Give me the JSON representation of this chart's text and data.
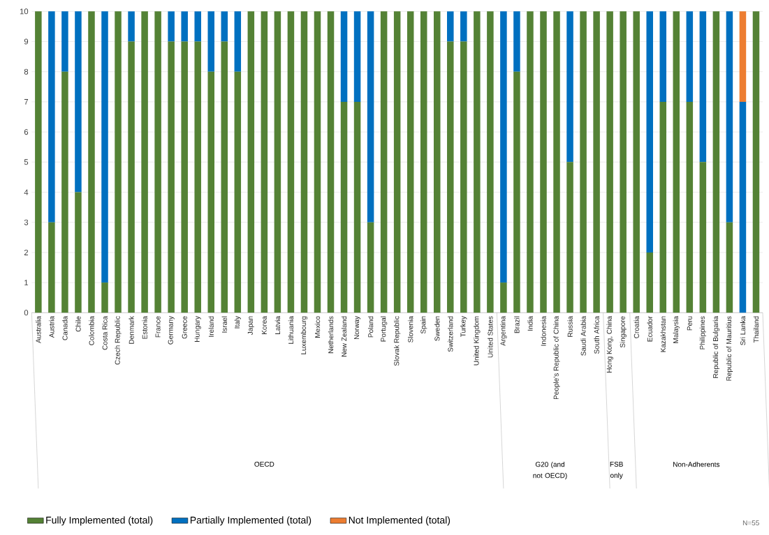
{
  "chart_data": {
    "type": "bar",
    "stacked": true,
    "categories": [
      "Australia",
      "Austria",
      "Canada",
      "Chile",
      "Colombia",
      "Costa Rica",
      "Czech Republic",
      "Denmark",
      "Estonia",
      "France",
      "Germany",
      "Greece",
      "Hungary",
      "Ireland",
      "Israel",
      "Italy",
      "Japan",
      "Korea",
      "Latvia",
      "Lithuania",
      "Luxembourg",
      "Mexico",
      "Netherlands",
      "New Zealand",
      "Norway",
      "Poland",
      "Portugal",
      "Slovak Republic",
      "Slovenia",
      "Spain",
      "Sweden",
      "Switzerland",
      "Turkey",
      "United Kingdom",
      "United States",
      "Argentina",
      "Brazil",
      "India",
      "Indonesia",
      "People’s Republic of China",
      "Russia",
      "Saudi Arabia",
      "South Africa",
      "Hong Kong, China",
      "Singapore",
      "Croatia",
      "Ecuador",
      "Kazakhstan",
      "Malaysia",
      "Peru",
      "Philippines",
      "Republic of Bulgaria",
      "Republic of Mauritius",
      "Sri Lanka",
      "Thailand"
    ],
    "series": [
      {
        "name": "Fully Implemented (total)",
        "color": "#548235",
        "values": [
          10,
          3,
          8,
          4,
          10,
          1,
          10,
          9,
          10,
          10,
          9,
          9,
          9,
          8,
          9,
          8,
          10,
          10,
          10,
          10,
          10,
          10,
          10,
          7,
          7,
          3,
          10,
          10,
          10,
          10,
          10,
          9,
          9,
          10,
          10,
          1,
          8,
          10,
          10,
          10,
          5,
          10,
          10,
          10,
          10,
          10,
          2,
          7,
          10,
          7,
          5,
          10,
          3,
          0,
          10
        ]
      },
      {
        "name": "Partially Implemented (total)",
        "color": "#0070c0",
        "values": [
          0,
          7,
          2,
          6,
          0,
          9,
          0,
          1,
          0,
          0,
          1,
          1,
          1,
          2,
          1,
          2,
          0,
          0,
          0,
          0,
          0,
          0,
          0,
          3,
          3,
          7,
          0,
          0,
          0,
          0,
          0,
          1,
          1,
          0,
          0,
          9,
          2,
          0,
          0,
          0,
          5,
          0,
          0,
          0,
          0,
          0,
          8,
          3,
          0,
          3,
          5,
          0,
          7,
          7,
          0
        ]
      },
      {
        "name": "Not Implemented (total)",
        "color": "#ed7d31",
        "values": [
          0,
          0,
          0,
          0,
          0,
          0,
          0,
          0,
          0,
          0,
          0,
          0,
          0,
          0,
          0,
          0,
          0,
          0,
          0,
          0,
          0,
          0,
          0,
          0,
          0,
          0,
          0,
          0,
          0,
          0,
          0,
          0,
          0,
          0,
          0,
          0,
          0,
          0,
          0,
          0,
          0,
          0,
          0,
          0,
          0,
          0,
          0,
          0,
          0,
          0,
          0,
          0,
          0,
          3,
          0
        ]
      }
    ],
    "ylim": [
      0,
      10
    ],
    "yticks": [
      0,
      1,
      2,
      3,
      4,
      5,
      6,
      7,
      8,
      9,
      10
    ],
    "grid": "y",
    "legend": "bottom",
    "annotations": [
      "OECD",
      "G20 (and not OECD)",
      "FSB only",
      "Non-Adherents",
      "N=55"
    ]
  }
}
